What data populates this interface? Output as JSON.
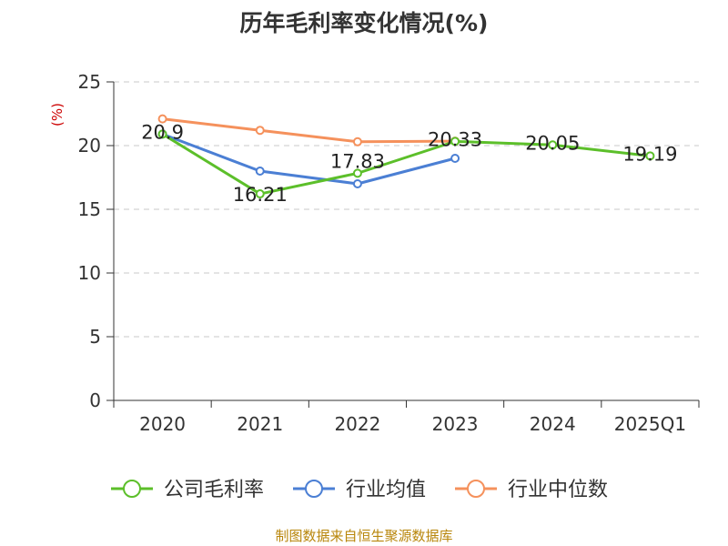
{
  "chart_data": {
    "type": "line",
    "title": "历年毛利率变化情况(%)",
    "ylabel": "(%)",
    "categories": [
      "2020",
      "2021",
      "2022",
      "2023",
      "2024",
      "2025Q1"
    ],
    "ylim": [
      0,
      25
    ],
    "yticks": [
      0,
      5,
      10,
      15,
      20,
      25
    ],
    "grid": true,
    "legend_position": "bottom",
    "series": [
      {
        "name": "公司毛利率",
        "color": "#5cbf2a",
        "values": [
          20.9,
          16.21,
          17.83,
          20.33,
          20.05,
          19.19
        ],
        "labels": [
          "20.9",
          "16.21",
          "17.83",
          "20.33",
          "20.05",
          "19.19"
        ]
      },
      {
        "name": "行业均值",
        "color": "#4b7fd4",
        "values": [
          20.9,
          18.0,
          17.0,
          19.0,
          null,
          null
        ]
      },
      {
        "name": "行业中位数",
        "color": "#f5915c",
        "values": [
          22.1,
          21.2,
          20.3,
          20.35,
          null,
          null
        ]
      }
    ]
  },
  "footer": "制图数据来自恒生聚源数据库"
}
